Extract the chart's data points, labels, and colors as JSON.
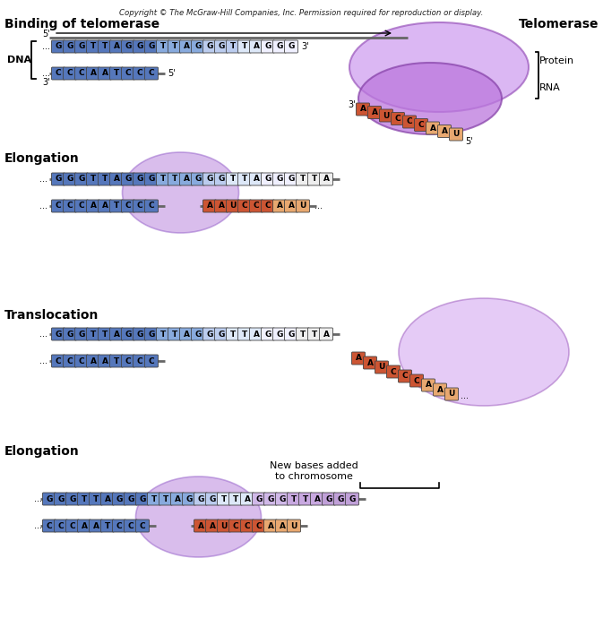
{
  "copyright": "Copyright © The McGraw-Hill Companies, Inc. Permission required for reproduction or display.",
  "bg_color": "#ffffff",
  "section1_label": "Binding of telomerase",
  "section1_right_label": "Telomerase",
  "section2_label": "Elongation",
  "section3_label": "Translocation",
  "section4_label": "Elongation",
  "section4_annotation": "New bases added\nto chromosome",
  "blue_dark": "#5577bb",
  "blue_mid": "#88aadd",
  "blue_light": "#bbccee",
  "blue_vlight": "#dde8f8",
  "white_box": "#f0f0ff",
  "orange_dark": "#cc5533",
  "orange_light": "#e8a870",
  "purple_color": "#bb88dd",
  "gray_line": "#888888"
}
